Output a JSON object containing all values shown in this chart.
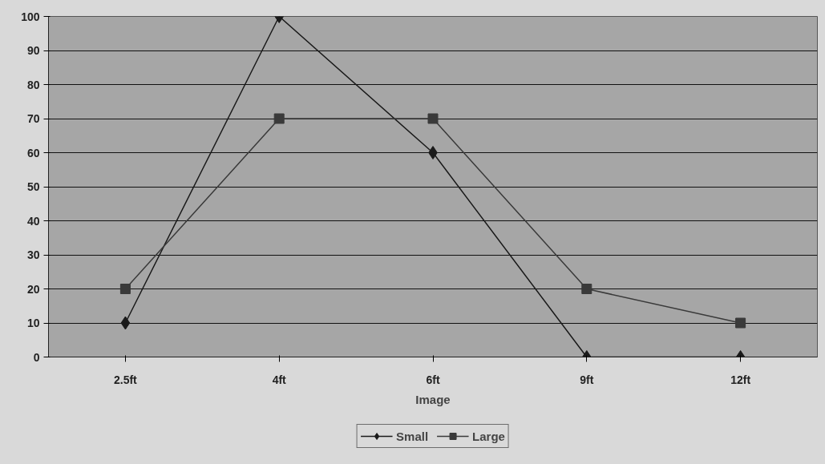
{
  "chart_data": {
    "type": "line",
    "xlabel": "Image",
    "categories": [
      "2.5ft",
      "4ft",
      "6ft",
      "9ft",
      "12ft"
    ],
    "series": [
      {
        "name": "Small",
        "color": "#1a1a1a",
        "marker": "diamond",
        "values": [
          10,
          100,
          60,
          0,
          0
        ]
      },
      {
        "name": "Large",
        "color": "#3a3a3a",
        "marker": "square",
        "values": [
          20,
          70,
          70,
          20,
          10
        ]
      }
    ],
    "ylim": [
      0,
      100
    ],
    "yticks": [
      0,
      10,
      20,
      30,
      40,
      50,
      60,
      70,
      80,
      90,
      100
    ],
    "grid": "y",
    "legend": "bottom",
    "line_style": "solid"
  }
}
